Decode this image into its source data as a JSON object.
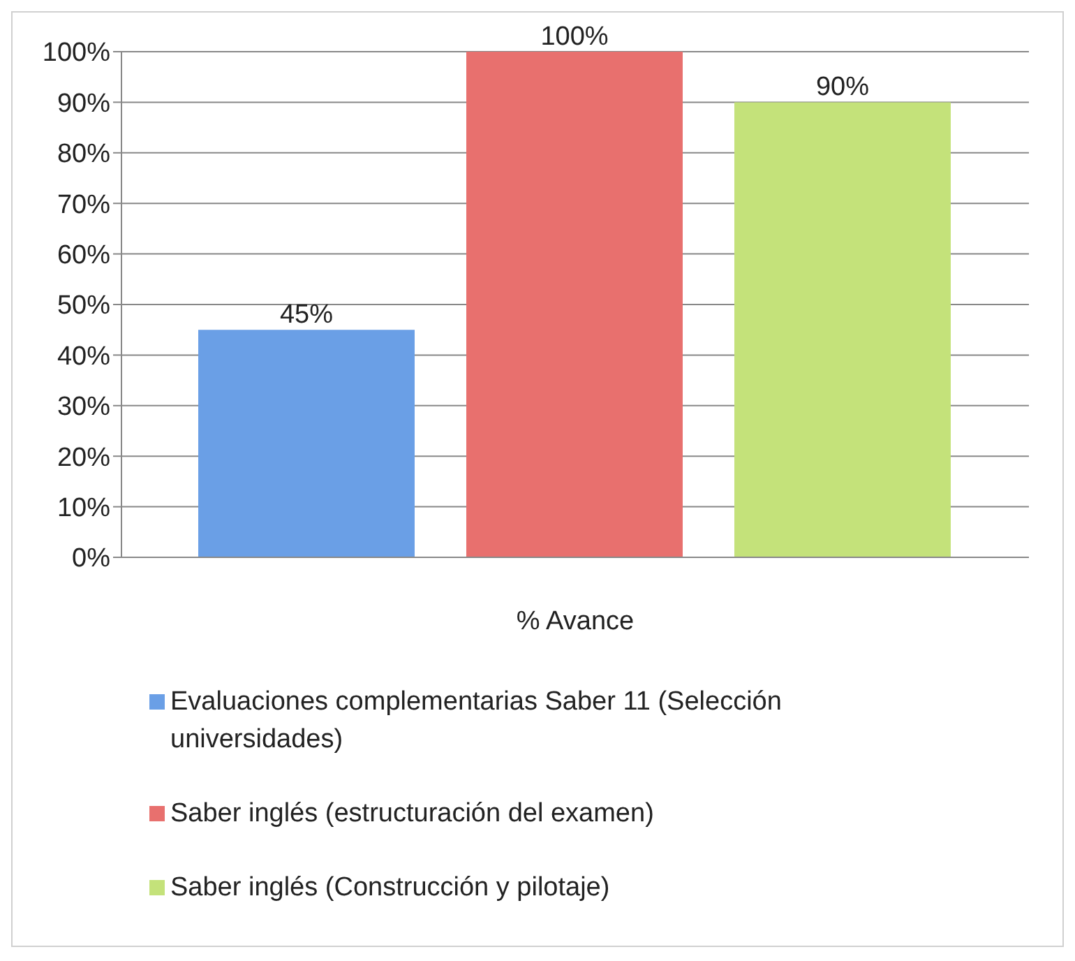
{
  "chart_data": {
    "type": "bar",
    "categories": [
      "% Avance"
    ],
    "series": [
      {
        "name": "Evaluaciones complementarias Saber 11 (Selección universidades)",
        "color": "#6a9fe6",
        "values": [
          45
        ],
        "value_labels": [
          "45%"
        ]
      },
      {
        "name": "Saber inglés (estructuración del examen)",
        "color": "#e8706e",
        "values": [
          100
        ],
        "value_labels": [
          "100%"
        ]
      },
      {
        "name": "Saber inglés (Construcción y pilotaje)",
        "color": "#c4e27a",
        "values": [
          90
        ],
        "value_labels": [
          "90%"
        ]
      }
    ],
    "ylim": [
      0,
      100
    ],
    "yticks": [
      {
        "value": 0,
        "label": "0%"
      },
      {
        "value": 10,
        "label": "10%"
      },
      {
        "value": 20,
        "label": "20%"
      },
      {
        "value": 30,
        "label": "30%"
      },
      {
        "value": 40,
        "label": "40%"
      },
      {
        "value": 50,
        "label": "50%"
      },
      {
        "value": 60,
        "label": "60%"
      },
      {
        "value": 70,
        "label": "70%"
      },
      {
        "value": 80,
        "label": "80%"
      },
      {
        "value": 90,
        "label": "90%"
      },
      {
        "value": 100,
        "label": "100%"
      }
    ],
    "grid": "y",
    "legend": "bottom"
  }
}
